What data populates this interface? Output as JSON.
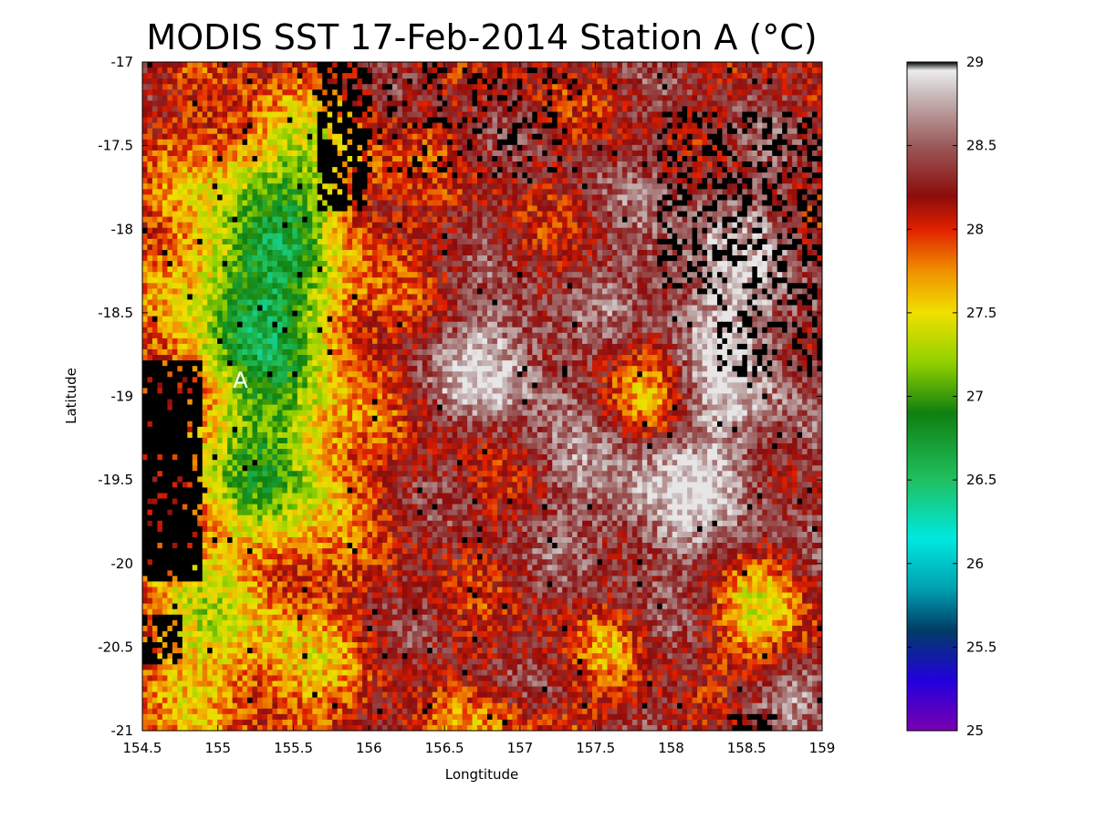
{
  "chart_data": {
    "type": "heatmap",
    "title": "MODIS SST 17-Feb-2014 Station A (°C)",
    "xlabel": "Longtitude",
    "ylabel": "Latitude",
    "xlim": [
      154.5,
      159
    ],
    "ylim": [
      -21,
      -17
    ],
    "x_ticks": [
      "154.5",
      "155",
      "155.5",
      "156",
      "156.5",
      "157",
      "157.5",
      "158",
      "158.5",
      "159"
    ],
    "y_ticks": [
      "-17",
      "-17.5",
      "-18",
      "-18.5",
      "-19",
      "-19.5",
      "-20",
      "-20.5",
      "-21"
    ],
    "colorbar": {
      "range": [
        25,
        29
      ],
      "ticks": [
        "25",
        "25.5",
        "26",
        "26.5",
        "27",
        "27.5",
        "28",
        "28.5",
        "29"
      ],
      "stops": [
        {
          "v": 25.0,
          "color": "#7a00b0"
        },
        {
          "v": 25.3,
          "color": "#2200dd"
        },
        {
          "v": 25.6,
          "color": "#003c66"
        },
        {
          "v": 25.85,
          "color": "#00a0b0"
        },
        {
          "v": 26.15,
          "color": "#00e8e0"
        },
        {
          "v": 26.5,
          "color": "#20c060"
        },
        {
          "v": 26.9,
          "color": "#108010"
        },
        {
          "v": 27.2,
          "color": "#90d000"
        },
        {
          "v": 27.5,
          "color": "#f0e000"
        },
        {
          "v": 27.75,
          "color": "#f09000"
        },
        {
          "v": 28.0,
          "color": "#e02000"
        },
        {
          "v": 28.2,
          "color": "#8c0c0c"
        },
        {
          "v": 28.5,
          "color": "#9a5a5a"
        },
        {
          "v": 28.8,
          "color": "#c8b8b8"
        },
        {
          "v": 28.95,
          "color": "#ececec"
        },
        {
          "v": 29.0,
          "color": "#000000"
        }
      ]
    },
    "no_data_color": "#000000",
    "station": {
      "label": "A",
      "lon": 155.15,
      "lat": -18.9
    },
    "grid": false
  }
}
